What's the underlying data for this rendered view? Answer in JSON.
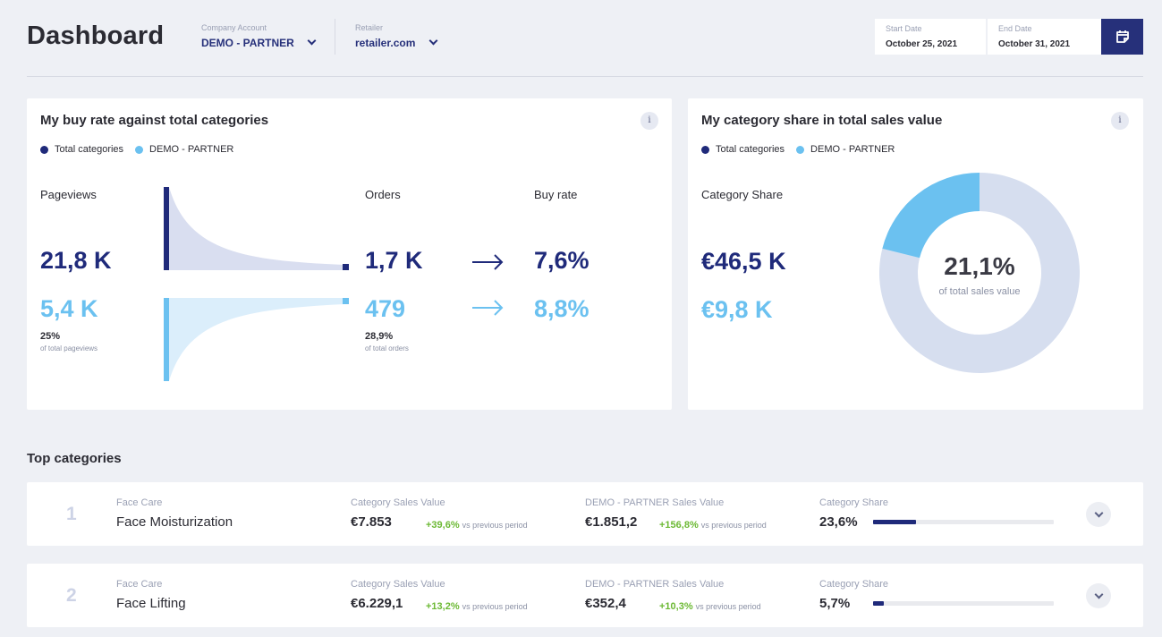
{
  "header": {
    "title": "Dashboard",
    "company": {
      "label": "Company Account",
      "value": "DEMO - PARTNER"
    },
    "retailer": {
      "label": "Retailer",
      "value": "retailer.com"
    },
    "start_date": {
      "label": "Start Date",
      "value": "October 25, 2021"
    },
    "end_date": {
      "label": "End Date",
      "value": "October 31, 2021"
    },
    "calendar_icon": "calendar-icon"
  },
  "buy_rate_card": {
    "title": "My buy rate against total categories",
    "info": "i",
    "legend": [
      {
        "label": "Total categories",
        "color": "#1f2a7a"
      },
      {
        "label": "DEMO - PARTNER",
        "color": "#6bc1f0"
      }
    ],
    "pageviews": {
      "label": "Pageviews",
      "total": "21,8 K",
      "partner": "5,4 K",
      "pct": "25%",
      "pct_sub": "of total pageviews"
    },
    "orders": {
      "label": "Orders",
      "total": "1,7 K",
      "partner": "479",
      "pct": "28,9%",
      "pct_sub": "of total orders"
    },
    "buy_rate": {
      "label": "Buy rate",
      "total": "7,6%",
      "partner": "8,8%"
    }
  },
  "share_card": {
    "title": "My category share in total sales value",
    "info": "i",
    "legend": [
      {
        "label": "Total categories",
        "color": "#1f2a7a"
      },
      {
        "label": "DEMO - PARTNER",
        "color": "#6bc1f0"
      }
    ],
    "label": "Category Share",
    "total": "€46,5 K",
    "partner": "€9,8 K",
    "donut": {
      "center_value": "21,1%",
      "center_sub": "of total sales value",
      "share_fraction": 0.211,
      "colors": {
        "partner": "#6bc1f0",
        "rest": "#d6deef"
      }
    }
  },
  "top_categories": {
    "title": "Top categories",
    "rows": [
      {
        "rank": "1",
        "group": "Face Care",
        "name": "Face Moisturization",
        "sales_label": "Category Sales Value",
        "sales_value": "€7.853",
        "sales_delta": "+39,6%",
        "sales_vs": "vs previous period",
        "partner_label": "DEMO - PARTNER Sales Value",
        "partner_value": "€1.851,2",
        "partner_delta": "+156,8%",
        "partner_vs": "vs previous period",
        "share_label": "Category Share",
        "share_value": "23,6%",
        "share_fraction": 0.236
      },
      {
        "rank": "2",
        "group": "Face Care",
        "name": "Face Lifting",
        "sales_label": "Category Sales Value",
        "sales_value": "€6.229,1",
        "sales_delta": "+13,2%",
        "sales_vs": "vs previous period",
        "partner_label": "DEMO - PARTNER Sales Value",
        "partner_value": "€352,4",
        "partner_delta": "+10,3%",
        "partner_vs": "vs previous period",
        "share_label": "Category Share",
        "share_value": "5,7%",
        "share_fraction": 0.057
      }
    ]
  }
}
